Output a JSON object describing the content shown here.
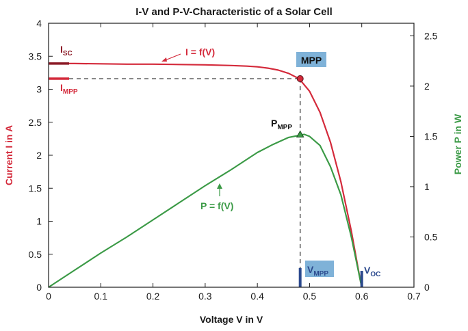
{
  "chart_data": {
    "type": "line",
    "title": "I-V and P-V-Characteristic of a Solar Cell",
    "xlabel": "Voltage V in V",
    "ylabel_left": "Current I in A",
    "ylabel_right": "Power P in W",
    "xlim": [
      0,
      0.7
    ],
    "ylim_left": [
      0,
      4
    ],
    "ylim_right": [
      0,
      2.625
    ],
    "x_ticks": [
      "0",
      "0.1",
      "0.2",
      "0.3",
      "0.4",
      "0.5",
      "0.6",
      "0.7"
    ],
    "y_left_ticks": [
      "0",
      "0.5",
      "1",
      "1.5",
      "2",
      "2.5",
      "3",
      "3.5",
      "4"
    ],
    "y_right_ticks": [
      "0",
      "0.5",
      "1",
      "1.5",
      "2",
      "2.5"
    ],
    "grid": false,
    "series": [
      {
        "name": "I = f(V)",
        "axis": "left",
        "color": "#d42a3b",
        "x": [
          0,
          0.05,
          0.1,
          0.15,
          0.2,
          0.25,
          0.3,
          0.35,
          0.38,
          0.4,
          0.42,
          0.44,
          0.46,
          0.48,
          0.5,
          0.52,
          0.54,
          0.56,
          0.58,
          0.595,
          0.6
        ],
        "y": [
          3.39,
          3.39,
          3.385,
          3.38,
          3.38,
          3.375,
          3.37,
          3.36,
          3.35,
          3.34,
          3.32,
          3.29,
          3.24,
          3.16,
          2.97,
          2.65,
          2.2,
          1.6,
          0.85,
          0.2,
          0
        ]
      },
      {
        "name": "P = f(V)",
        "axis": "right",
        "color": "#3b9a46",
        "x": [
          0,
          0.05,
          0.1,
          0.15,
          0.2,
          0.25,
          0.3,
          0.35,
          0.4,
          0.43,
          0.46,
          0.48,
          0.49,
          0.5,
          0.52,
          0.54,
          0.56,
          0.58,
          0.6
        ],
        "y": [
          0,
          0.17,
          0.34,
          0.5,
          0.67,
          0.84,
          1.01,
          1.17,
          1.34,
          1.42,
          1.49,
          1.51,
          1.52,
          1.5,
          1.41,
          1.2,
          0.92,
          0.5,
          0
        ]
      }
    ],
    "annotations": {
      "isc": {
        "main": "I",
        "sub": "SC",
        "value": 3.39,
        "color": "#8b1a26"
      },
      "impp": {
        "main": "I",
        "sub": "MPP",
        "value": 3.16,
        "color": "#d42a3b"
      },
      "mpp": {
        "label": "MPP",
        "x": 0.482,
        "y": 3.16,
        "box_color": "#7fb2d8"
      },
      "pmpp": {
        "main": "P",
        "sub": "MPP",
        "x": 0.482,
        "y": 1.52
      },
      "vmpp": {
        "main": "V",
        "sub": "MPP",
        "value": 0.482,
        "box_color": "#7fb2d8",
        "color": "#2c4a8e"
      },
      "voc": {
        "main": "V",
        "sub": "OC",
        "value": 0.6,
        "color": "#2c4a8e"
      },
      "i_curve_label": "I = f(V)",
      "p_curve_label": "P = f(V)"
    },
    "colors": {
      "current": "#d42a3b",
      "power": "#3b9a46",
      "axis": "#1a1a1a",
      "marker_blue": "#2c4a8e"
    }
  }
}
